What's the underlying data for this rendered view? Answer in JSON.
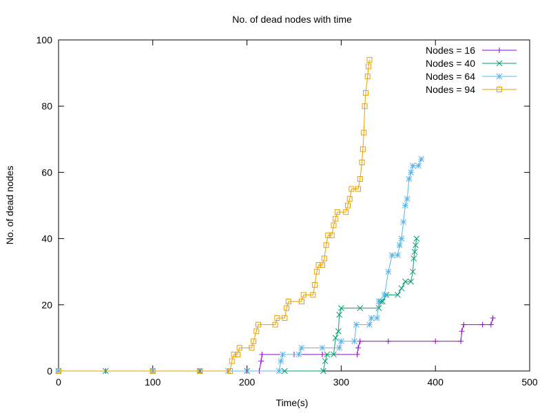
{
  "chart_data": {
    "type": "line",
    "title": "No. of dead nodes with time",
    "xlabel": "Time(s)",
    "ylabel": "No. of dead nodes",
    "xlim": [
      0,
      500
    ],
    "ylim": [
      0,
      100
    ],
    "xticks": [
      0,
      100,
      200,
      300,
      400,
      500
    ],
    "yticks": [
      0,
      20,
      40,
      60,
      80,
      100
    ],
    "legend_position": "top-right",
    "series": [
      {
        "name": "Nodes = 16",
        "color": "#9400d3",
        "marker": "plus",
        "points": [
          [
            0,
            0
          ],
          [
            50,
            0
          ],
          [
            100,
            0
          ],
          [
            150,
            0
          ],
          [
            200,
            0
          ],
          [
            213,
            0
          ],
          [
            215,
            3
          ],
          [
            216,
            5
          ],
          [
            250,
            5
          ],
          [
            280,
            5
          ],
          [
            317,
            5
          ],
          [
            318,
            7
          ],
          [
            320,
            9
          ],
          [
            350,
            9
          ],
          [
            400,
            9
          ],
          [
            427,
            9
          ],
          [
            428,
            12
          ],
          [
            430,
            14
          ],
          [
            450,
            14
          ],
          [
            459,
            14
          ],
          [
            461,
            16
          ]
        ]
      },
      {
        "name": "Nodes = 40",
        "color": "#009e73",
        "marker": "x",
        "points": [
          [
            0,
            0
          ],
          [
            50,
            0
          ],
          [
            100,
            0
          ],
          [
            150,
            0
          ],
          [
            200,
            0
          ],
          [
            240,
            0
          ],
          [
            281,
            0
          ],
          [
            283,
            3
          ],
          [
            285,
            5
          ],
          [
            292,
            5
          ],
          [
            294,
            10
          ],
          [
            297,
            12
          ],
          [
            298,
            17
          ],
          [
            300,
            19
          ],
          [
            320,
            19
          ],
          [
            340,
            19
          ],
          [
            342,
            21
          ],
          [
            344,
            21
          ],
          [
            348,
            23
          ],
          [
            360,
            23
          ],
          [
            364,
            25
          ],
          [
            368,
            27
          ],
          [
            374,
            27
          ],
          [
            376,
            30
          ],
          [
            377,
            34
          ],
          [
            378,
            36
          ],
          [
            379,
            38
          ],
          [
            380,
            40
          ]
        ]
      },
      {
        "name": "Nodes = 64",
        "color": "#56b4e9",
        "marker": "star",
        "points": [
          [
            0,
            0
          ],
          [
            100,
            0
          ],
          [
            180,
            0
          ],
          [
            234,
            0
          ],
          [
            236,
            3
          ],
          [
            238,
            5
          ],
          [
            255,
            5
          ],
          [
            258,
            7
          ],
          [
            280,
            7
          ],
          [
            298,
            7
          ],
          [
            300,
            9
          ],
          [
            314,
            9
          ],
          [
            316,
            14
          ],
          [
            330,
            14
          ],
          [
            332,
            16
          ],
          [
            338,
            16
          ],
          [
            340,
            21
          ],
          [
            346,
            23
          ],
          [
            350,
            30
          ],
          [
            354,
            35
          ],
          [
            360,
            35
          ],
          [
            362,
            38
          ],
          [
            364,
            40
          ],
          [
            366,
            45
          ],
          [
            368,
            50
          ],
          [
            370,
            52
          ],
          [
            372,
            58
          ],
          [
            374,
            60
          ],
          [
            376,
            62
          ],
          [
            382,
            62
          ],
          [
            385,
            64
          ]
        ]
      },
      {
        "name": "Nodes = 94",
        "color": "#e69f00",
        "marker": "square",
        "points": [
          [
            0,
            0
          ],
          [
            100,
            0
          ],
          [
            150,
            0
          ],
          [
            182,
            0
          ],
          [
            184,
            3
          ],
          [
            186,
            5
          ],
          [
            190,
            5
          ],
          [
            192,
            7
          ],
          [
            205,
            7
          ],
          [
            207,
            9
          ],
          [
            210,
            12
          ],
          [
            212,
            14
          ],
          [
            230,
            14
          ],
          [
            232,
            16
          ],
          [
            240,
            16
          ],
          [
            242,
            19
          ],
          [
            244,
            21
          ],
          [
            258,
            21
          ],
          [
            260,
            23
          ],
          [
            270,
            23
          ],
          [
            272,
            26
          ],
          [
            274,
            30
          ],
          [
            276,
            32
          ],
          [
            280,
            32
          ],
          [
            282,
            34
          ],
          [
            284,
            38
          ],
          [
            286,
            41
          ],
          [
            290,
            41
          ],
          [
            292,
            44
          ],
          [
            294,
            46
          ],
          [
            296,
            48
          ],
          [
            305,
            48
          ],
          [
            307,
            50
          ],
          [
            309,
            52
          ],
          [
            311,
            55
          ],
          [
            318,
            55
          ],
          [
            320,
            58
          ],
          [
            322,
            63
          ],
          [
            323,
            67
          ],
          [
            324,
            72
          ],
          [
            325,
            80
          ],
          [
            326,
            84
          ],
          [
            328,
            89
          ],
          [
            329,
            92
          ],
          [
            330,
            94
          ]
        ]
      }
    ]
  }
}
